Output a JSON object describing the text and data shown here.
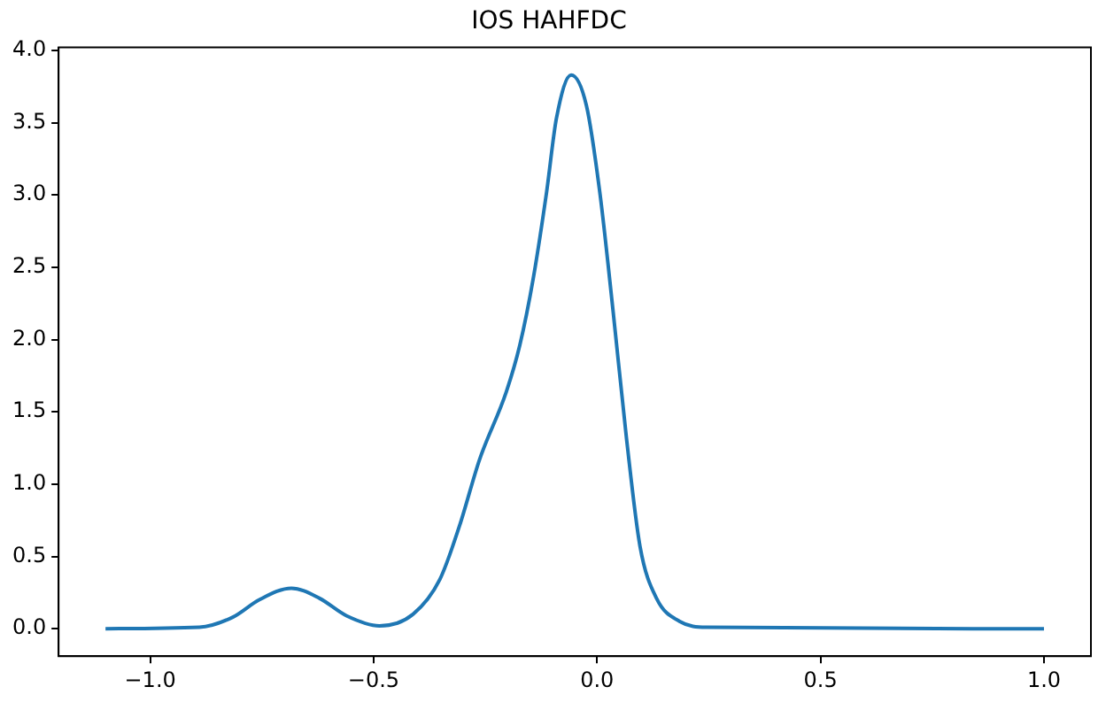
{
  "chart_data": {
    "type": "line",
    "title": "IOS HAHFDC",
    "x": [
      -1.1,
      -0.89,
      -0.815,
      -0.756,
      -0.684,
      -0.621,
      -0.561,
      -0.487,
      -0.412,
      -0.352,
      -0.308,
      -0.263,
      -0.203,
      -0.173,
      -0.143,
      -0.113,
      -0.091,
      -0.058,
      -0.024,
      0.006,
      0.036,
      0.066,
      0.096,
      0.133,
      0.185,
      0.244,
      1.0
    ],
    "series": [
      {
        "color": "#1f77b4",
        "values": [
          0,
          0.01,
          0.08,
          0.2,
          0.28,
          0.21,
          0.09,
          0.02,
          0.1,
          0.34,
          0.71,
          1.17,
          1.64,
          1.96,
          2.42,
          3.02,
          3.53,
          3.83,
          3.62,
          3.02,
          2.19,
          1.31,
          0.57,
          0.21,
          0.05,
          0.01,
          0
        ]
      }
    ],
    "xlim": [
      -1.205,
      1.105
    ],
    "xticks": [
      {
        "value": -1,
        "label": "−1.0"
      },
      {
        "value": -0.5,
        "label": "−0.5"
      },
      {
        "value": 0,
        "label": "0.0"
      },
      {
        "value": 0.5,
        "label": "0.5"
      },
      {
        "value": 1,
        "label": "1.0"
      }
    ],
    "ylim": [
      -0.19,
      4.02
    ],
    "yticks": [
      {
        "value": 0,
        "label": "0.0"
      },
      {
        "value": 0.5,
        "label": "0.5"
      },
      {
        "value": 1,
        "label": "1.0"
      },
      {
        "value": 1.5,
        "label": "1.5"
      },
      {
        "value": 2,
        "label": "2.0"
      },
      {
        "value": 2.5,
        "label": "2.5"
      },
      {
        "value": 3,
        "label": "3.0"
      },
      {
        "value": 3.5,
        "label": "3.5"
      },
      {
        "value": 4,
        "label": "4.0"
      }
    ],
    "grid": false,
    "legend": false,
    "marker": "none",
    "line_style": "solid"
  }
}
